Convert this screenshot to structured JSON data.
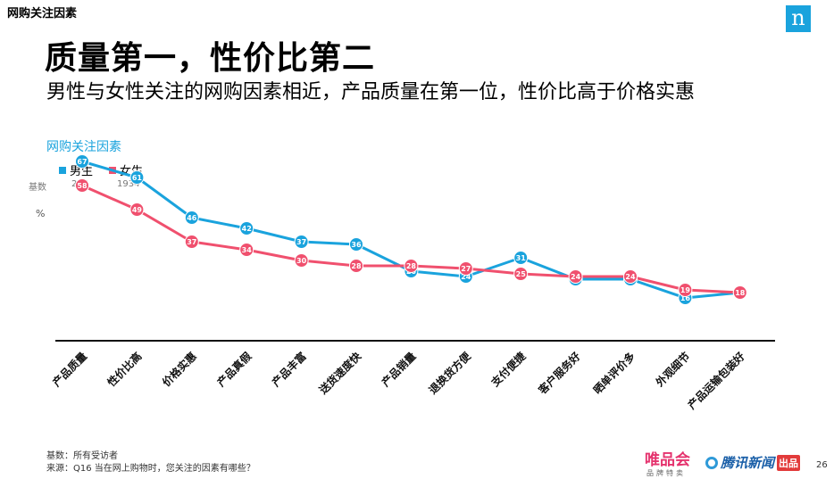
{
  "header": {
    "top_label": "网购关注因素",
    "logo_letter": "n",
    "title": "质量第一，性价比第二",
    "subtitle": "男性与女性关注的网购因素相近，产品质量在第一位，性价比高于价格实惠"
  },
  "legend": {
    "base_label": "基数",
    "items": [
      {
        "name": "男生",
        "base": "266",
        "color": "#1aa3dd"
      },
      {
        "name": "女生",
        "base": "1934",
        "color": "#f0506e"
      }
    ]
  },
  "chart_data": {
    "type": "line",
    "title": "网购关注因素",
    "ylabel": "%",
    "xlabel": "",
    "ylim": [
      0,
      80
    ],
    "categories": [
      "产品质量",
      "性价比高",
      "价格实惠",
      "产品真假",
      "产品丰富",
      "送货速度快",
      "产品销量",
      "退换货方便",
      "支付便捷",
      "客户服务好",
      "晒单评价多",
      "外观细节",
      "产品运输包装好"
    ],
    "series": [
      {
        "name": "男生",
        "color": "#1aa3dd",
        "values": [
          67,
          61,
          46,
          42,
          37,
          36,
          26,
          24,
          31,
          23,
          23,
          16,
          18
        ]
      },
      {
        "name": "女生",
        "color": "#f0506e",
        "values": [
          58,
          49,
          37,
          34,
          30,
          28,
          28,
          27,
          25,
          24,
          24,
          19,
          18
        ]
      }
    ]
  },
  "footer": {
    "base": "基数：所有受访者",
    "source": "来源：Q16 当在网上购物时，您关注的因素有哪些？",
    "logo_vip": "唯品会",
    "logo_vip_sub": "品牌特卖",
    "logo_tencent": "腾讯新闻",
    "logo_tencent_badge": "出品",
    "page_number": "26"
  }
}
